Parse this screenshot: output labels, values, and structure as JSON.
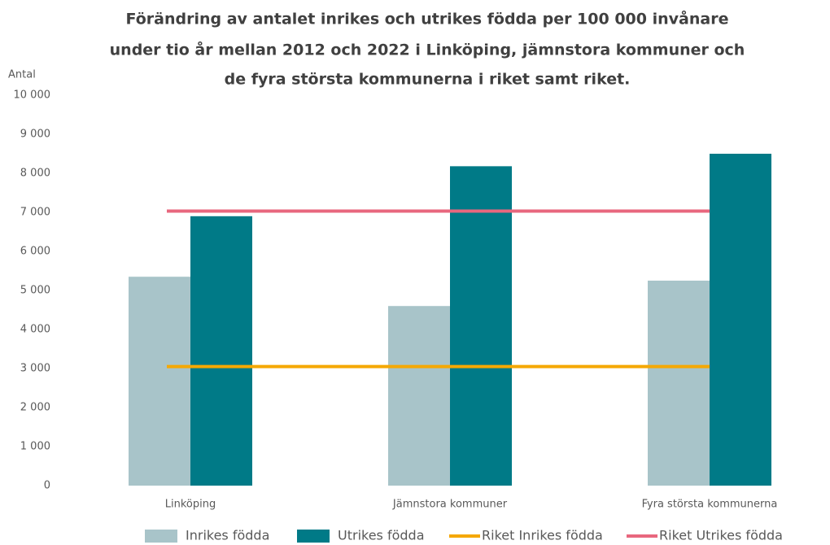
{
  "chart_data": {
    "type": "bar",
    "title": [
      "Förändring av antalet inrikes och utrikes födda per 100 000 invånare",
      "under tio år mellan 2012 och 2022 i Linköping, jämnstora kommuner och",
      "de fyra största kommunerna i riket samt riket."
    ],
    "y_label": "Antal",
    "categories": [
      "Linköping",
      "Jämnstora kommuner",
      "Fyra största kommunerna"
    ],
    "series": [
      {
        "name": "Inrikes födda",
        "type": "bar",
        "color": "#a8c4c9",
        "values": [
          5350,
          4600,
          5250
        ]
      },
      {
        "name": "Utrikes födda",
        "type": "bar",
        "color": "#007a87",
        "values": [
          6900,
          8180,
          8500
        ]
      },
      {
        "name": "Riket Inrikes födda",
        "type": "line",
        "color": "#f5a800",
        "values": [
          3050,
          3050,
          3050
        ]
      },
      {
        "name": "Riket Utrikes födda",
        "type": "line",
        "color": "#e8677e",
        "values": [
          7030,
          7030,
          7030
        ]
      }
    ],
    "ylim": [
      0,
      10000
    ],
    "yticks": [
      0,
      {
        "value": 1000,
        "label": "1 000"
      },
      {
        "value": 2000,
        "label": "2 000"
      },
      {
        "value": 3000,
        "label": "3 000"
      },
      {
        "value": 4000,
        "label": "4 000"
      },
      {
        "value": 5000,
        "label": "5 000"
      },
      {
        "value": 6000,
        "label": "6 000"
      },
      {
        "value": 7000,
        "label": "7 000"
      },
      {
        "value": 8000,
        "label": "8 000"
      },
      {
        "value": 9000,
        "label": "9 000"
      },
      {
        "value": 10000,
        "label": "10 000"
      }
    ],
    "legend": "bottom"
  }
}
